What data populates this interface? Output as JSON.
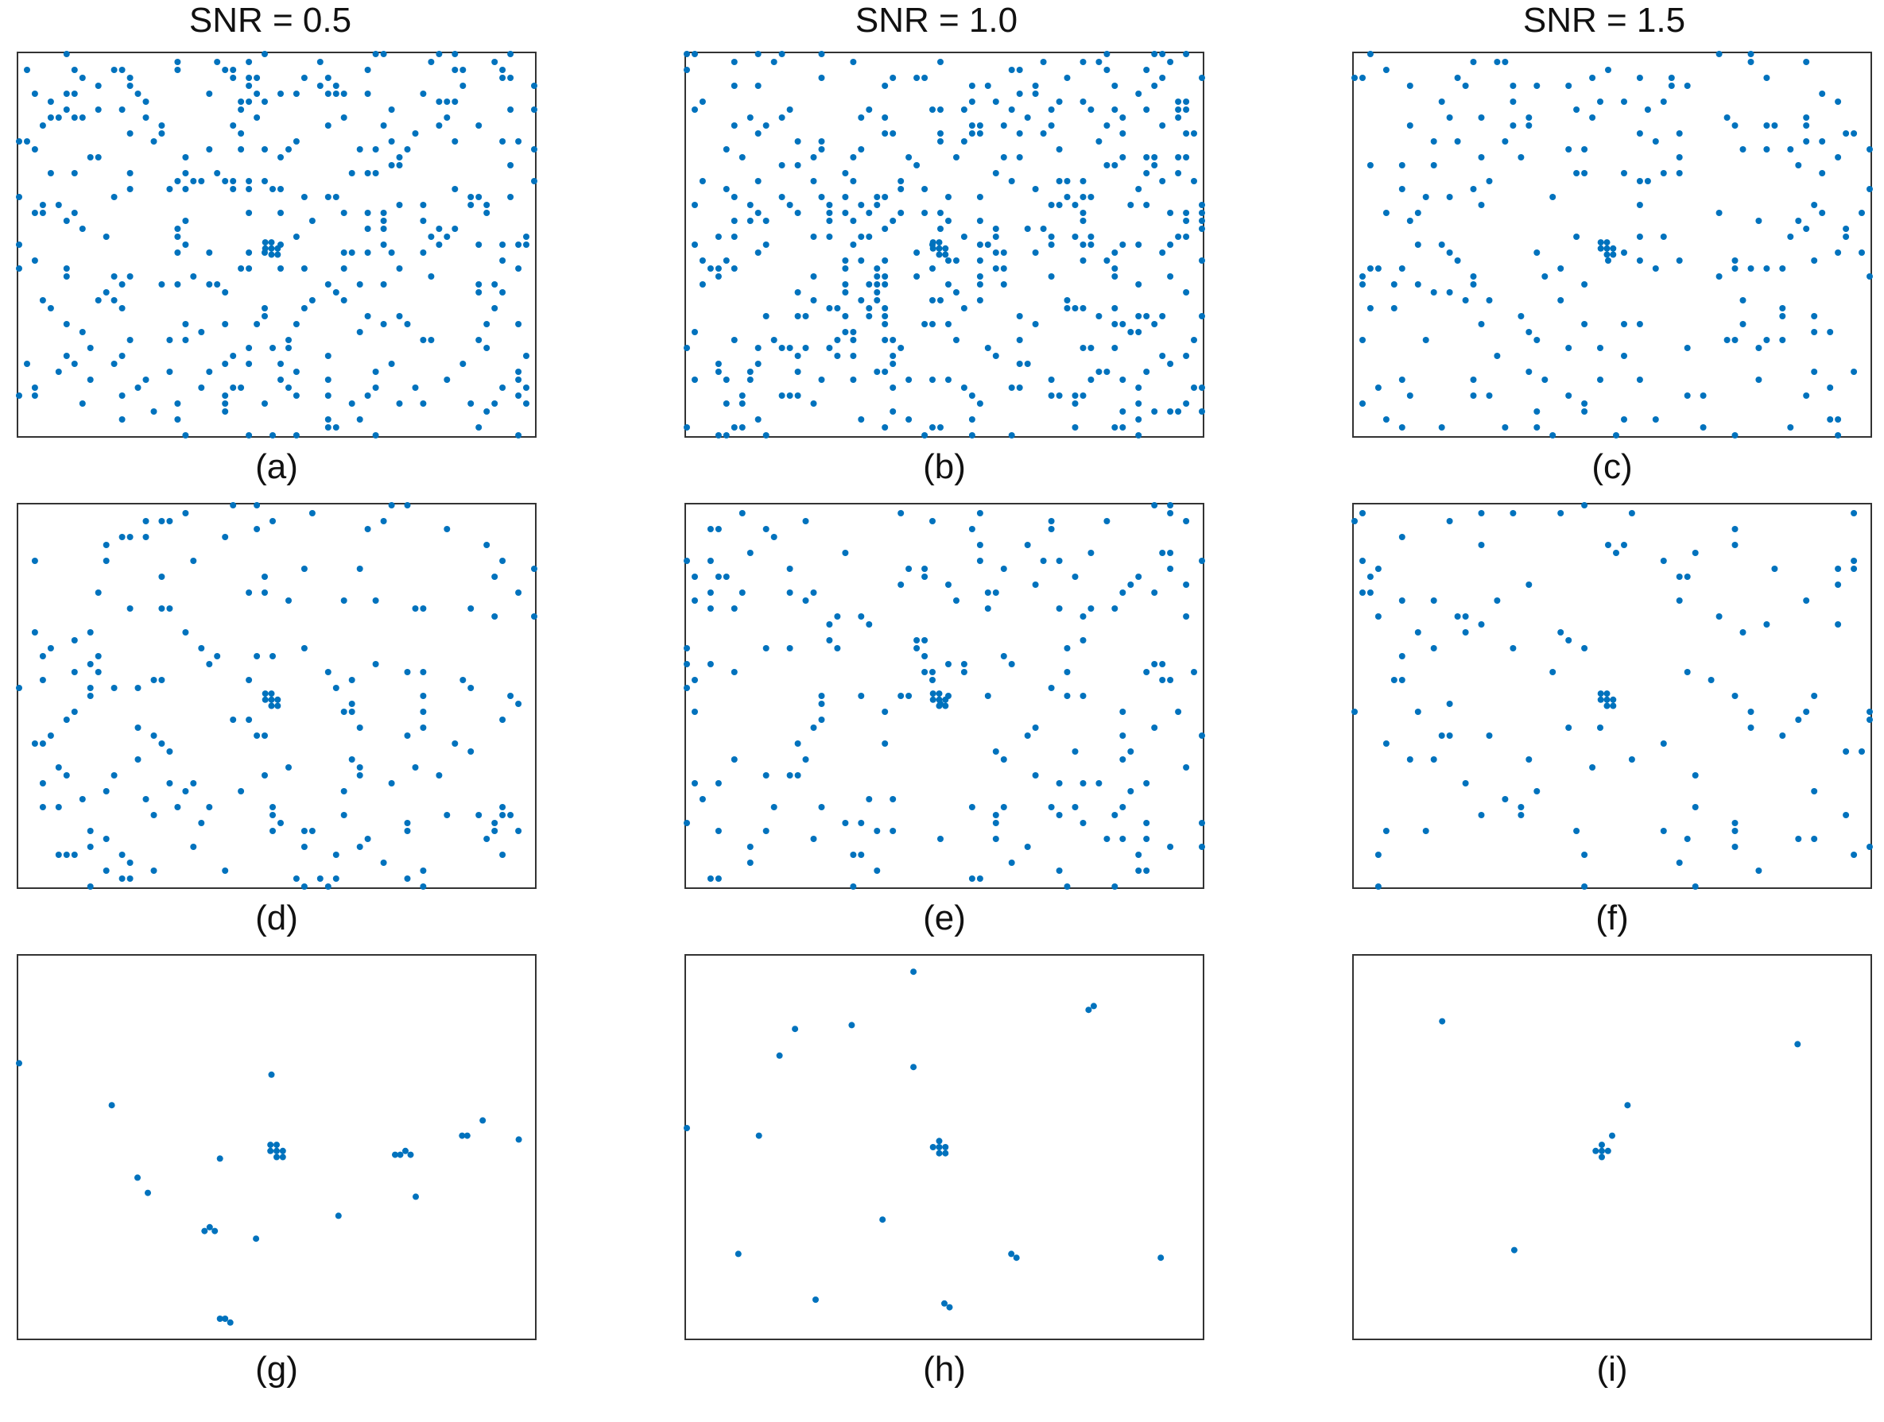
{
  "column_titles": [
    "SNR = 0.5",
    "SNR = 1.0",
    "SNR = 1.5"
  ],
  "colors": {
    "points": "#0072BD",
    "frame": "#333333",
    "background": "#ffffff"
  },
  "chart_data": [
    {
      "type": "scatter",
      "label": "(a)",
      "snr": "0.5",
      "density": 0.105,
      "seed": 11,
      "cluster": [
        0.49,
        0.51
      ],
      "cluster_size": 7,
      "extra": []
    },
    {
      "type": "scatter",
      "label": "(b)",
      "snr": "1.0",
      "density": 0.105,
      "seed": 23,
      "cluster": [
        0.49,
        0.51
      ],
      "cluster_size": 7,
      "extra": []
    },
    {
      "type": "scatter",
      "label": "(c)",
      "snr": "1.5",
      "density": 0.062,
      "seed": 37,
      "cluster": [
        0.49,
        0.51
      ],
      "cluster_size": 7,
      "extra": []
    },
    {
      "type": "scatter",
      "label": "(d)",
      "snr": "0.5",
      "density": 0.055,
      "seed": 41,
      "cluster": [
        0.49,
        0.51
      ],
      "cluster_size": 7,
      "extra": []
    },
    {
      "type": "scatter",
      "label": "(e)",
      "snr": "1.0",
      "density": 0.055,
      "seed": 53,
      "cluster": [
        0.49,
        0.51
      ],
      "cluster_size": 7,
      "extra": []
    },
    {
      "type": "scatter",
      "label": "(f)",
      "snr": "1.5",
      "density": 0.032,
      "seed": 67,
      "cluster": [
        0.49,
        0.51
      ],
      "cluster_size": 7,
      "extra": []
    },
    {
      "type": "scatter",
      "label": "(g)",
      "snr": "0.5",
      "density": 0,
      "seed": 71,
      "cluster": [
        0.5,
        0.51
      ],
      "cluster_size": 7,
      "extra": [
        [
          0.0,
          0.28
        ],
        [
          0.18,
          0.39
        ],
        [
          0.49,
          0.31
        ],
        [
          0.39,
          0.53
        ],
        [
          0.23,
          0.58
        ],
        [
          0.25,
          0.62
        ],
        [
          0.37,
          0.71
        ],
        [
          0.38,
          0.72
        ],
        [
          0.36,
          0.72
        ],
        [
          0.46,
          0.74
        ],
        [
          0.62,
          0.68
        ],
        [
          0.74,
          0.52
        ],
        [
          0.75,
          0.51
        ],
        [
          0.73,
          0.52
        ],
        [
          0.76,
          0.52
        ],
        [
          0.77,
          0.63
        ],
        [
          0.87,
          0.47
        ],
        [
          0.86,
          0.47
        ],
        [
          0.9,
          0.43
        ],
        [
          0.97,
          0.48
        ],
        [
          0.4,
          0.95
        ],
        [
          0.41,
          0.96
        ],
        [
          0.39,
          0.95
        ]
      ]
    },
    {
      "type": "scatter",
      "label": "(h)",
      "snr": "1.0",
      "density": 0,
      "seed": 83,
      "cluster": [
        0.49,
        0.5
      ],
      "cluster_size": 6,
      "extra": [
        [
          0.44,
          0.04
        ],
        [
          0.21,
          0.19
        ],
        [
          0.32,
          0.18
        ],
        [
          0.18,
          0.26
        ],
        [
          0.44,
          0.29
        ],
        [
          0.78,
          0.14
        ],
        [
          0.79,
          0.13
        ],
        [
          0.0,
          0.45
        ],
        [
          0.14,
          0.47
        ],
        [
          0.38,
          0.69
        ],
        [
          0.1,
          0.78
        ],
        [
          0.63,
          0.78
        ],
        [
          0.64,
          0.79
        ],
        [
          0.92,
          0.79
        ],
        [
          0.25,
          0.9
        ],
        [
          0.5,
          0.91
        ],
        [
          0.51,
          0.92
        ]
      ]
    },
    {
      "type": "scatter",
      "label": "(i)",
      "snr": "1.5",
      "density": 0,
      "seed": 97,
      "cluster": [
        0.48,
        0.51
      ],
      "cluster_size": 5,
      "extra": [
        [
          0.17,
          0.17
        ],
        [
          0.86,
          0.23
        ],
        [
          0.53,
          0.39
        ],
        [
          0.5,
          0.47
        ],
        [
          0.31,
          0.77
        ]
      ]
    }
  ]
}
